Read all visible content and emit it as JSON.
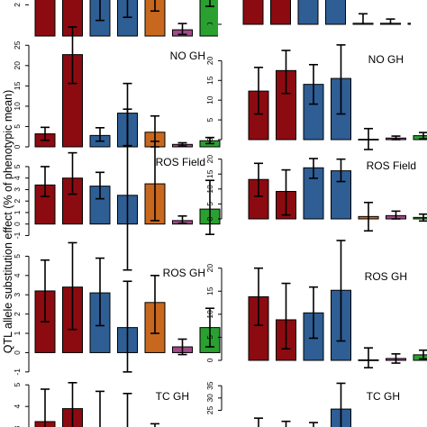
{
  "figure": {
    "ylabel": "QTL allele substitution effect (% of phenotypic mean)"
  },
  "colors": {
    "dark_red": "#8b0b11",
    "blue": "#2e5e94",
    "orange": "#c8671e",
    "magenta": "#a04a87",
    "green": "#2aa030",
    "light": "#c39a7a"
  },
  "chart_data": [
    {
      "type": "bar",
      "panel": "left-1",
      "title": "",
      "yticks": [
        "2"
      ],
      "ylim": [
        0,
        3
      ],
      "bar_colors": [
        "dark_red",
        "dark_red",
        "blue",
        "blue",
        "orange",
        "magenta",
        "green"
      ],
      "values": [
        3.0,
        3.0,
        3.0,
        3.0,
        3.0,
        0.4,
        2.8
      ],
      "errors": [
        [
          2.5,
          3.0
        ],
        [
          2.5,
          3.0
        ],
        [
          1.0,
          3.0
        ],
        [
          1.2,
          3.0
        ],
        [
          1.6,
          3.0
        ],
        [
          0.1,
          0.8
        ],
        [
          1.9,
          3.0
        ]
      ]
    },
    {
      "type": "bar",
      "panel": "right-1",
      "title": "",
      "yticks": [
        "0"
      ],
      "ylim": [
        0,
        10
      ],
      "bar_colors": [
        "dark_red",
        "dark_red",
        "blue",
        "blue",
        "orange",
        "magenta",
        "green"
      ],
      "values": [
        10,
        10,
        10,
        10,
        0.3,
        0.3,
        0.3
      ],
      "errors": [
        null,
        null,
        null,
        null,
        [
          -2.5,
          3.0
        ],
        [
          -1.0,
          1.5
        ],
        [
          -1.5,
          2.0
        ]
      ]
    },
    {
      "type": "bar",
      "panel": "left-2",
      "title": "NO GH",
      "yticks": [
        "0",
        "5",
        "10",
        "15",
        "20",
        "25"
      ],
      "ylim": [
        0,
        25.5
      ],
      "bar_colors": [
        "dark_red",
        "dark_red",
        "blue",
        "blue",
        "orange",
        "magenta",
        "green"
      ],
      "values": [
        3.2,
        22.7,
        2.8,
        8.3,
        3.6,
        0.6,
        1.5
      ],
      "errors": [
        [
          1.6,
          4.8
        ],
        [
          15.6,
          29.5
        ],
        [
          1.4,
          4.7
        ],
        [
          0.3,
          15.6
        ],
        [
          0,
          7.6
        ],
        [
          0.2,
          1.0
        ],
        [
          0.8,
          2.3
        ]
      ]
    },
    {
      "type": "bar",
      "panel": "right-2",
      "title": "NO GH",
      "yticks": [
        "0",
        "5",
        "10",
        "15",
        "20"
      ],
      "ylim": [
        0,
        21
      ],
      "bar_colors": [
        "dark_red",
        "dark_red",
        "blue",
        "blue",
        "light",
        "magenta",
        "green"
      ],
      "values": [
        12.3,
        17.5,
        14.0,
        15.5,
        0.1,
        0.4,
        1.0
      ],
      "errors": [
        [
          6.5,
          18.3
        ],
        [
          11.7,
          22.6
        ],
        [
          9.0,
          19.0
        ],
        [
          6.5,
          24.0
        ],
        [
          -2.5,
          2.8
        ],
        [
          0,
          0.9
        ],
        [
          0.2,
          1.8
        ]
      ]
    },
    {
      "type": "bar",
      "panel": "left-3",
      "title": "ROS Field",
      "yticks": [
        "-1",
        "0",
        "1",
        "2",
        "3",
        "4",
        "5"
      ],
      "ylim": [
        -1.2,
        5.7
      ],
      "bar_colors": [
        "dark_red",
        "dark_red",
        "blue",
        "blue",
        "orange",
        "magenta",
        "green"
      ],
      "values": [
        3.4,
        4.0,
        3.3,
        2.5,
        3.5,
        0.3,
        1.3
      ],
      "errors": [
        [
          2.4,
          5.0
        ],
        [
          2.6,
          6.2
        ],
        [
          2.2,
          4.5
        ],
        [
          -4.0,
          10.0
        ],
        [
          0.3,
          7.2
        ],
        [
          0.05,
          0.7
        ],
        [
          -0.9,
          3.8
        ]
      ]
    },
    {
      "type": "bar",
      "panel": "right-3",
      "title": "ROS Field",
      "yticks": [
        "0",
        "5",
        "10",
        "15",
        "20"
      ],
      "ylim": [
        0,
        20.5
      ],
      "bar_colors": [
        "dark_red",
        "dark_red",
        "blue",
        "blue",
        "orange",
        "magenta",
        "green"
      ],
      "values": [
        13.2,
        9.2,
        17.1,
        16.1,
        0.8,
        1.1,
        0.5
      ],
      "errors": [
        [
          7.6,
          18.6
        ],
        [
          1.3,
          16.4
        ],
        [
          13.6,
          20.2
        ],
        [
          12.5,
          20.0
        ],
        [
          -4.0,
          5.5
        ],
        [
          0,
          2.6
        ],
        [
          -0.7,
          1.6
        ]
      ]
    },
    {
      "type": "bar",
      "panel": "left-4",
      "title": "ROS GH",
      "yticks": [
        "-1",
        "0",
        "1",
        "2",
        "3",
        "4",
        "5"
      ],
      "ylim": [
        -1.1,
        5.3
      ],
      "bar_colors": [
        "dark_red",
        "dark_red",
        "blue",
        "blue",
        "orange",
        "magenta",
        "green"
      ],
      "values": [
        3.2,
        3.4,
        3.1,
        1.3,
        2.6,
        0.3,
        1.3
      ],
      "errors": [
        [
          1.6,
          4.8
        ],
        [
          1.2,
          5.7
        ],
        [
          1.4,
          4.9
        ],
        [
          -1.0,
          3.7
        ],
        [
          1.0,
          4.0
        ],
        [
          -0.1,
          0.7
        ],
        [
          0.3,
          2.3
        ]
      ]
    },
    {
      "type": "bar",
      "panel": "right-4",
      "title": "ROS GH",
      "yticks": [
        "0",
        "5",
        "10",
        "15",
        "20"
      ],
      "ylim": [
        0,
        21.5
      ],
      "bar_colors": [
        "dark_red",
        "dark_red",
        "blue",
        "blue",
        "light",
        "magenta",
        "green"
      ],
      "values": [
        13.8,
        8.8,
        10.3,
        15.2,
        0.1,
        0.4,
        1.2
      ],
      "errors": [
        [
          7.6,
          20.0
        ],
        [
          2.5,
          16.7
        ],
        [
          4.8,
          15.9
        ],
        [
          4.2,
          26.0
        ],
        [
          -1.6,
          2.7
        ],
        [
          -0.6,
          1.4
        ],
        [
          0.3,
          2.2
        ]
      ]
    },
    {
      "type": "bar",
      "panel": "left-5",
      "title": "TC GH",
      "yticks": [
        "3",
        "4",
        "5"
      ],
      "ylim": [
        2.8,
        5.3
      ],
      "bar_colors": [
        "dark_red",
        "dark_red",
        "blue",
        "blue",
        "light",
        "magenta",
        "green"
      ],
      "values": [
        3.3,
        3.9,
        2.8,
        2.8,
        3.0,
        2.8,
        2.8
      ],
      "errors": [
        [
          2.5,
          4.8
        ],
        [
          2.5,
          5.1
        ],
        [
          2.5,
          4.7
        ],
        [
          2.5,
          4.6
        ],
        [
          2.5,
          3.2
        ],
        null,
        null
      ]
    },
    {
      "type": "bar",
      "panel": "right-5",
      "title": "TC GH",
      "yticks": [
        "25",
        "30",
        "35"
      ],
      "ylim": [
        16,
        38
      ],
      "bar_colors": [
        "dark_red",
        "dark_red",
        "blue",
        "blue",
        "orange",
        "magenta",
        "green"
      ],
      "values": [
        16,
        16,
        16,
        25.5,
        16,
        16,
        16
      ],
      "errors": [
        [
          16,
          21.8
        ],
        [
          16,
          20.5
        ],
        [
          16,
          20.0
        ],
        [
          16,
          36.0
        ],
        null,
        null,
        null
      ]
    }
  ]
}
